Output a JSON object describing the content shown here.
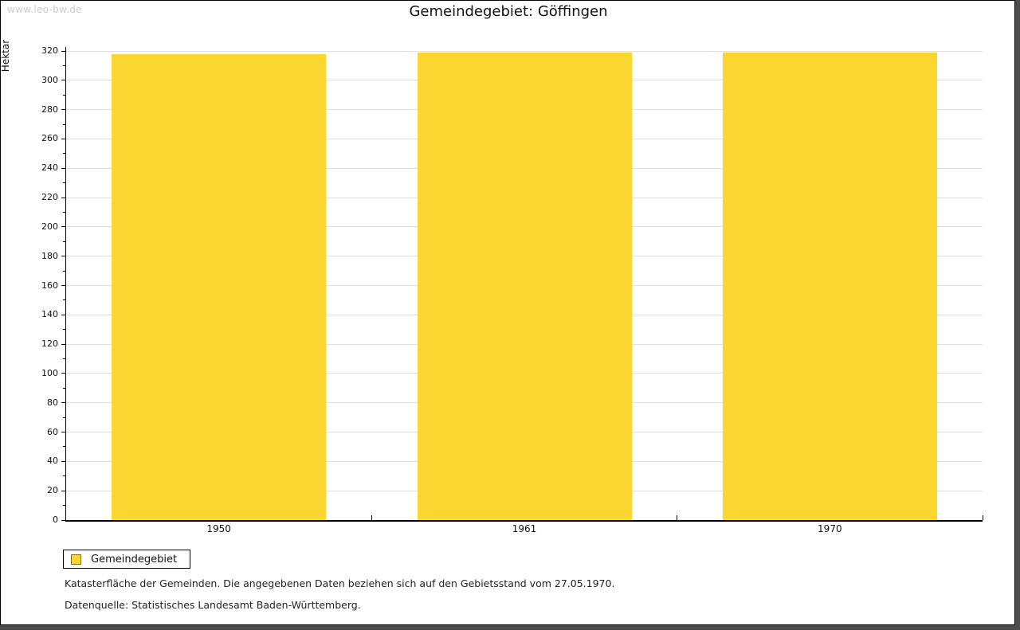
{
  "watermark": "www.leo-bw.de",
  "title": "Gemeindegebiet: Göffingen",
  "legend": {
    "label": "Gemeindegebiet"
  },
  "footnotes": [
    "Katasterfläche der Gemeinden. Die angegebenen Daten beziehen sich auf den Gebietsstand vom 27.05.1970.",
    "Datenquelle: Statistisches Landesamt Baden-Württemberg."
  ],
  "colors": {
    "bar": "#FCD630",
    "legend_swatch_border": "#877000",
    "grid": "#e0e0e0",
    "axis": "#000000",
    "watermark": "#cccccc",
    "frame_shadow": "#4d4d4d",
    "background": "#ffffff"
  },
  "chart_data": {
    "type": "bar",
    "title": "Gemeindegebiet: Göffingen",
    "series_name": "Gemeindegebiet",
    "categories": [
      "1950",
      "1961",
      "1970"
    ],
    "values": [
      318,
      319,
      319
    ],
    "xlabel": "",
    "ylabel": "Hektar",
    "ylim": [
      0,
      320
    ],
    "y_major_step": 20,
    "y_minor_step": 10,
    "grid": "horizontal-major",
    "legend_position": "bottom-left",
    "bar_color": "#FCD630"
  }
}
